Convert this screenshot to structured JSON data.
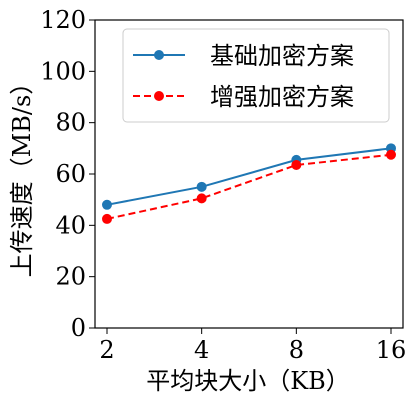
{
  "chart_data": {
    "type": "line",
    "title": "",
    "xlabel": "平均块大小（KB）",
    "ylabel": "上传速度（MB/s）",
    "categories": [
      "2",
      "4",
      "8",
      "16"
    ],
    "ylim": [
      0,
      120
    ],
    "yticks": [
      0,
      20,
      40,
      60,
      80,
      100,
      120
    ],
    "grid": false,
    "legend_position": "top-right",
    "series": [
      {
        "name": "基础加密方案",
        "values": [
          48,
          55,
          65.5,
          70
        ],
        "color": "#1f77b4",
        "linestyle": "solid",
        "marker": "circle"
      },
      {
        "name": "增强加密方案",
        "values": [
          42.5,
          50.5,
          63.5,
          67.5
        ],
        "color": "#ff0000",
        "linestyle": "dashed",
        "marker": "circle"
      }
    ]
  }
}
